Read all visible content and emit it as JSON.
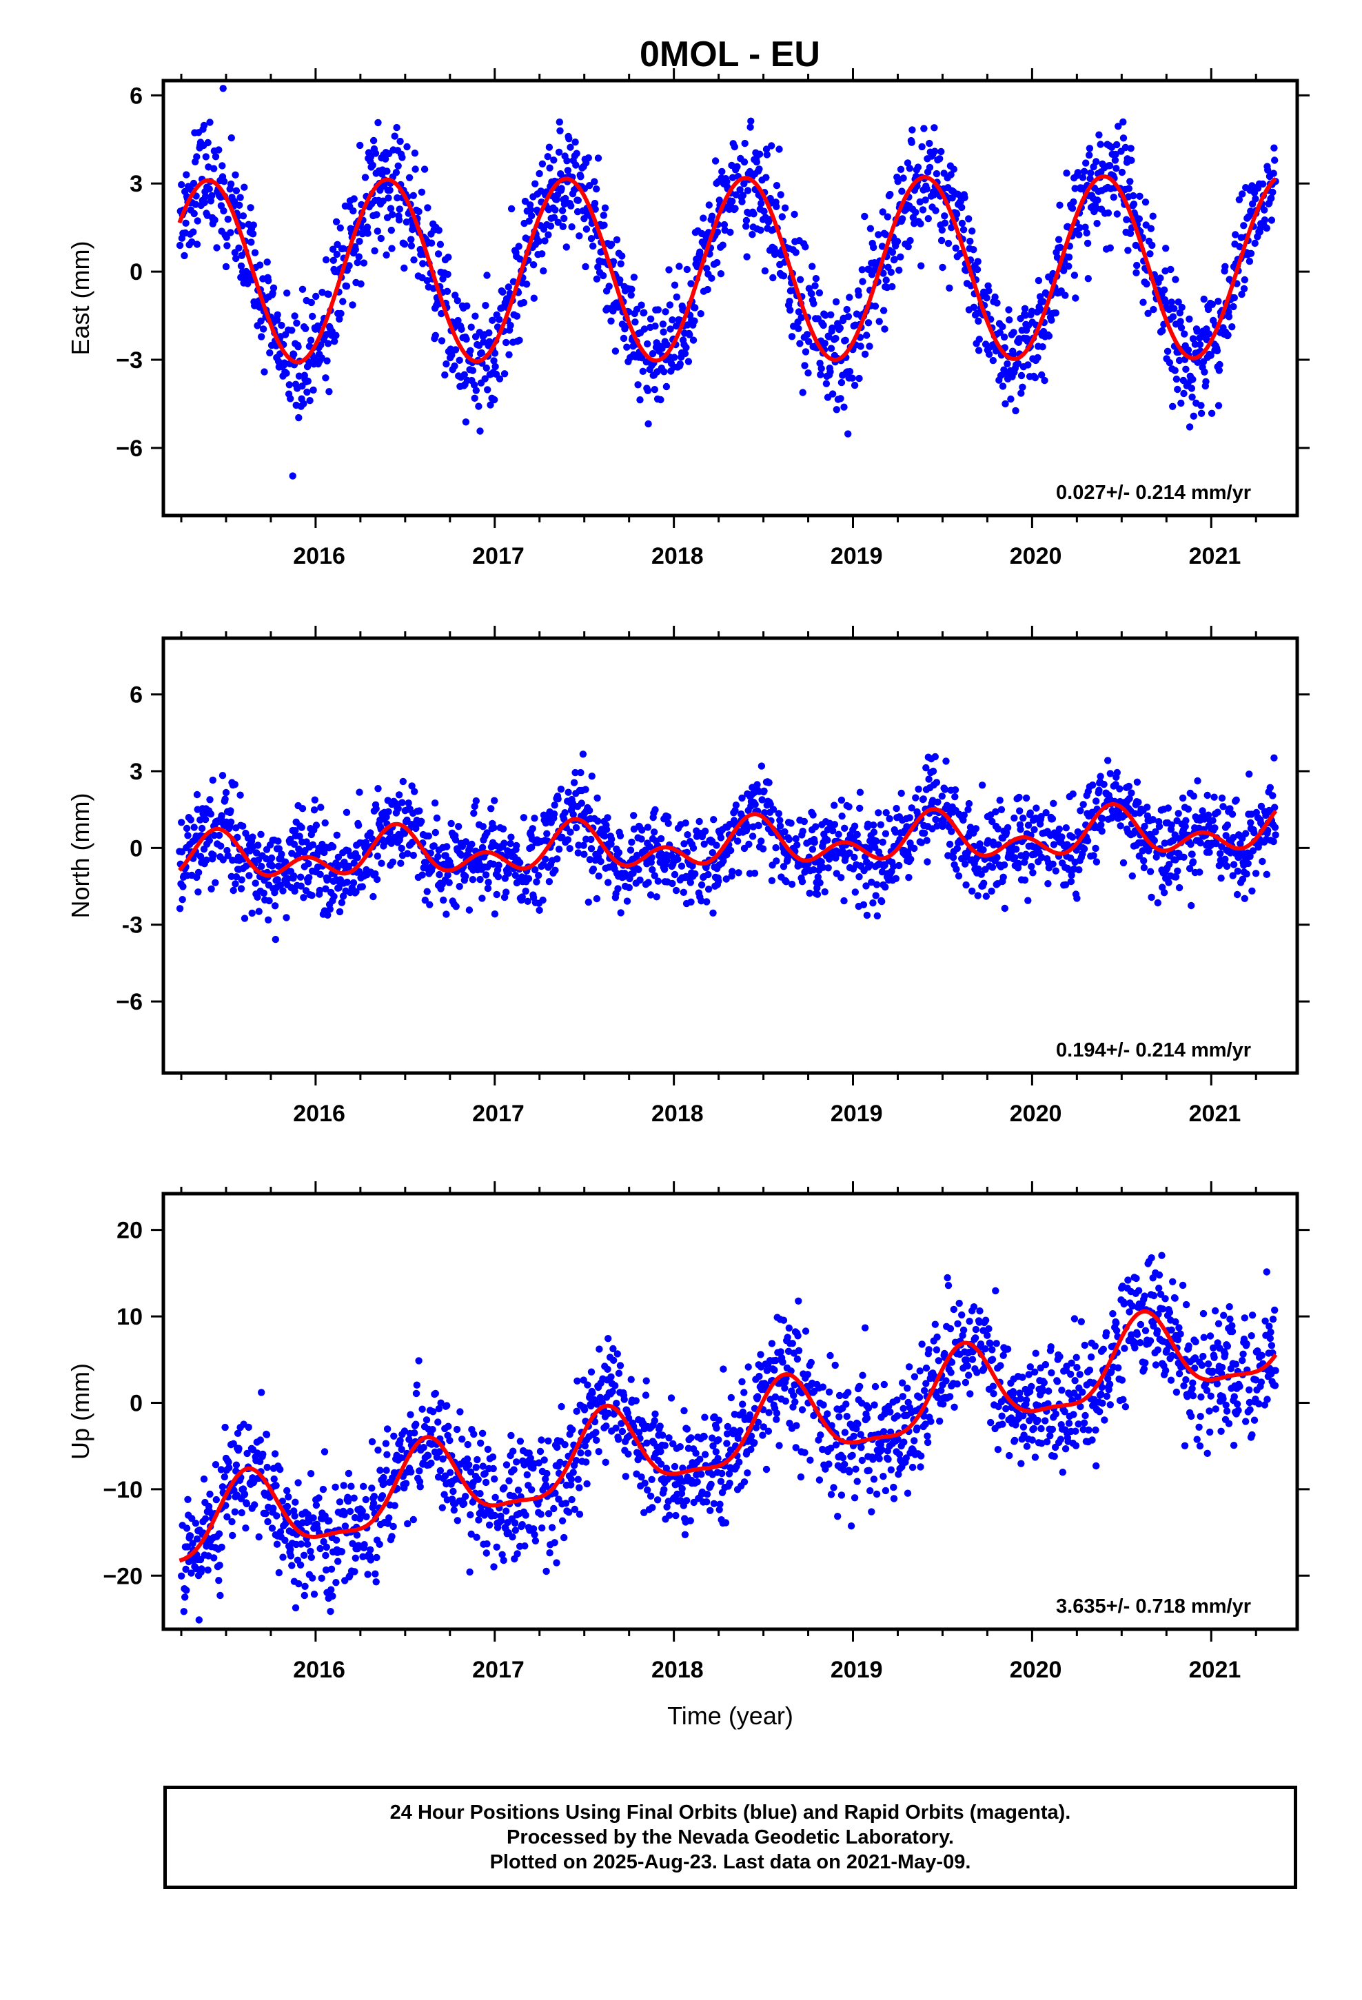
{
  "chart_data": [
    {
      "type": "scatter",
      "title": "0MOL - EU",
      "xlabel": "",
      "ylabel": "East (mm)",
      "xlim": [
        2015.15,
        2021.48
      ],
      "ylim": [
        -8.3,
        6.5
      ],
      "yticks": [
        -6,
        -3,
        0,
        3,
        6
      ],
      "ytick_labels": [
        "−6",
        "−3",
        "0",
        "3",
        "6"
      ],
      "xticks": [
        2016,
        2017,
        2018,
        2019,
        2020,
        2021
      ],
      "xtick_labels": [
        "2016",
        "2017",
        "2018",
        "2019",
        "2020",
        "2021"
      ],
      "rate_annotation": "0.027+/- 0.214 mm/yr",
      "grid": false,
      "data_start": 2015.24,
      "data_end": 2021.36,
      "series": [
        {
          "role": "daily positions",
          "color": "#0000ff",
          "marker": "dot",
          "model": {
            "offset": 0.0,
            "trend": 0.027,
            "annual_amp": 3.1,
            "annual_peak": 2015.4,
            "semi_amp": 0.0,
            "semi_peak": 2015.0,
            "noise_sd": 1.0
          }
        },
        {
          "role": "model fit",
          "color": "#ff0000",
          "line": true
        }
      ]
    },
    {
      "type": "scatter",
      "title": "",
      "xlabel": "",
      "ylabel": "North (mm)",
      "xlim": [
        2015.15,
        2021.48
      ],
      "ylim": [
        -8.8,
        8.2
      ],
      "yticks": [
        -6,
        -3,
        0,
        3,
        6
      ],
      "ytick_labels": [
        "−6",
        "-3",
        "0",
        "3",
        "6"
      ],
      "xticks": [
        2016,
        2017,
        2018,
        2019,
        2020,
        2021
      ],
      "xtick_labels": [
        "2016",
        "2017",
        "2018",
        "2019",
        "2020",
        "2021"
      ],
      "rate_annotation": "0.194+/- 0.214 mm/yr",
      "grid": false,
      "data_start": 2015.24,
      "data_end": 2021.36,
      "series": [
        {
          "role": "daily positions",
          "color": "#0000ff",
          "marker": "dot",
          "model": {
            "offset": -0.5,
            "trend": 0.194,
            "annual_amp": 0.6,
            "annual_peak": 2015.45,
            "semi_amp": 0.6,
            "semi_peak": 2015.45,
            "noise_sd": 0.9
          }
        },
        {
          "role": "model fit",
          "color": "#ff0000",
          "line": true
        }
      ]
    },
    {
      "type": "scatter",
      "title": "",
      "xlabel": "Time (year)",
      "ylabel": "Up (mm)",
      "xlim": [
        2015.15,
        2021.48
      ],
      "ylim": [
        -26.2,
        24.2
      ],
      "yticks": [
        -20,
        -10,
        0,
        10,
        20
      ],
      "ytick_labels": [
        "−20",
        "−10",
        "0",
        "10",
        "20"
      ],
      "xticks": [
        2016,
        2017,
        2018,
        2019,
        2020,
        2021
      ],
      "xtick_labels": [
        "2016",
        "2017",
        "2018",
        "2019",
        "2020",
        "2021"
      ],
      "rate_annotation": "3.635+/- 0.718 mm/yr",
      "grid": false,
      "data_start": 2015.24,
      "data_end": 2021.36,
      "series": [
        {
          "role": "daily positions",
          "color": "#0000ff",
          "marker": "dot",
          "model": {
            "offset": -15.0,
            "trend": 3.635,
            "annual_amp": 4.6,
            "annual_peak": 2015.62,
            "semi_amp": 1.4,
            "semi_peak": 2015.62,
            "noise_sd": 3.6
          }
        },
        {
          "role": "model fit",
          "color": "#ff0000",
          "line": true
        }
      ]
    }
  ],
  "footer": {
    "line1": "24 Hour Positions Using Final Orbits (blue) and Rapid Orbits (magenta).",
    "line2": "Processed by the Nevada Geodetic Laboratory.",
    "line3": "Plotted on 2025-Aug-23. Last data on 2021-May-09."
  }
}
